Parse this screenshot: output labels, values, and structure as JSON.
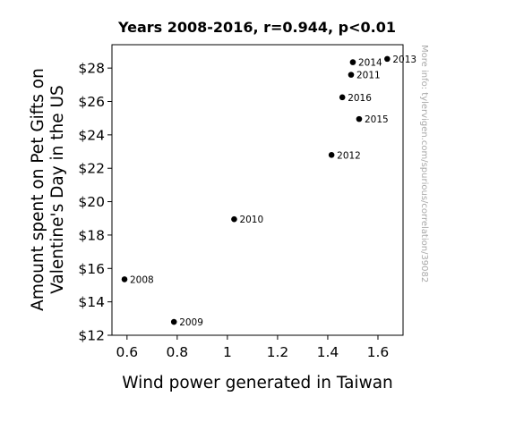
{
  "chart_data": {
    "type": "scatter",
    "title": "Years 2008-2016, r=0.944, p<0.01",
    "xlabel": "Wind power generated in Taiwan",
    "ylabel_lines": [
      "Amount spent on Pet Gifts on",
      "Valentine's Day in the US"
    ],
    "xlim": [
      0.54,
      1.7
    ],
    "ylim": [
      12,
      29.4
    ],
    "xticks": [
      {
        "value": 0.6,
        "label": "0.6"
      },
      {
        "value": 0.8,
        "label": "0.8"
      },
      {
        "value": 1.0,
        "label": "1"
      },
      {
        "value": 1.2,
        "label": "1.2"
      },
      {
        "value": 1.4,
        "label": "1.4"
      },
      {
        "value": 1.6,
        "label": "1.6"
      }
    ],
    "yticks": [
      {
        "value": 12,
        "label": "$12"
      },
      {
        "value": 14,
        "label": "$14"
      },
      {
        "value": 16,
        "label": "$16"
      },
      {
        "value": 18,
        "label": "$18"
      },
      {
        "value": 20,
        "label": "$20"
      },
      {
        "value": 22,
        "label": "$22"
      },
      {
        "value": 24,
        "label": "$24"
      },
      {
        "value": 26,
        "label": "$26"
      },
      {
        "value": 28,
        "label": "$28"
      }
    ],
    "grid": false,
    "marker_color": "#000000",
    "points": [
      {
        "label": "2008",
        "x": 0.59,
        "y": 15.35
      },
      {
        "label": "2009",
        "x": 0.787,
        "y": 12.8
      },
      {
        "label": "2010",
        "x": 1.027,
        "y": 18.95
      },
      {
        "label": "2011",
        "x": 1.493,
        "y": 27.6
      },
      {
        "label": "2012",
        "x": 1.415,
        "y": 22.8
      },
      {
        "label": "2013",
        "x": 1.637,
        "y": 28.55
      },
      {
        "label": "2014",
        "x": 1.5,
        "y": 28.35
      },
      {
        "label": "2015",
        "x": 1.525,
        "y": 24.95
      },
      {
        "label": "2016",
        "x": 1.458,
        "y": 26.25
      }
    ]
  },
  "side_note": "More info: tylervigen.com/spurious/correlation/39082"
}
